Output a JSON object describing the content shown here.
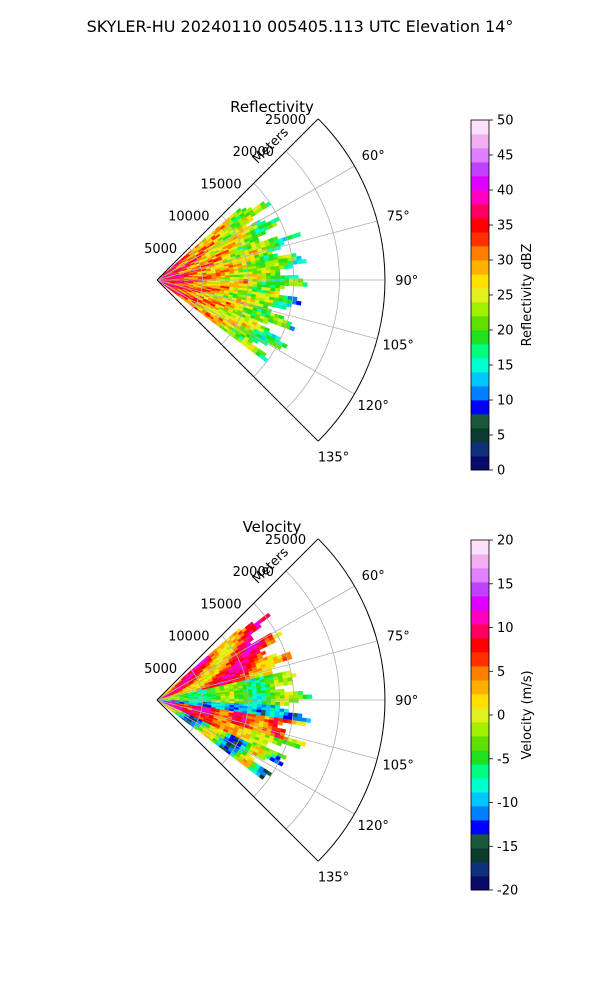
{
  "figure": {
    "suptitle": "SKYLER-HU  20240110  005405.113 UTC Elevation 14°"
  },
  "panels": [
    {
      "title": "Reflectivity",
      "range_unit_label": "Meters",
      "range_ticks": [
        "5000",
        "10000",
        "15000",
        "20000",
        "25000"
      ],
      "azimuth_ticks": [
        "60°",
        "75°",
        "90°",
        "105°",
        "120°",
        "135°"
      ],
      "colorbar": {
        "label": "Reflectivity dBZ",
        "ticks": [
          "0",
          "5",
          "10",
          "15",
          "20",
          "25",
          "30",
          "35",
          "40",
          "45",
          "50"
        ]
      }
    },
    {
      "title": "Velocity",
      "range_unit_label": "Meters",
      "range_ticks": [
        "5000",
        "10000",
        "15000",
        "20000",
        "25000"
      ],
      "azimuth_ticks": [
        "60°",
        "75°",
        "90°",
        "105°",
        "120°",
        "135°"
      ],
      "colorbar": {
        "label": "Velocity (m/s)",
        "ticks": [
          "-20",
          "-15",
          "-10",
          "-5",
          "0",
          "5",
          "10",
          "15",
          "20"
        ]
      }
    }
  ],
  "chart_data": [
    {
      "type": "heatmap",
      "projection": "polar-sector",
      "title": "Reflectivity",
      "azimuth_range_deg": [
        45,
        135
      ],
      "range_limit_m": [
        0,
        25000
      ],
      "range_ticks_m": [
        5000,
        10000,
        15000,
        20000,
        25000
      ],
      "azimuth_ticks_deg": [
        60,
        75,
        90,
        105,
        120,
        135
      ],
      "data_extent_m": 15000,
      "grid": true,
      "colorbar": {
        "label": "Reflectivity dBZ",
        "min": 0,
        "max": 50,
        "ticks": [
          0,
          5,
          10,
          15,
          20,
          25,
          30,
          35,
          40,
          45,
          50
        ]
      },
      "colormap": [
        "#0a0a6b",
        "#10307a",
        "#0a3b2e",
        "#1a5a3a",
        "#0000ff",
        "#0080ff",
        "#00c8ff",
        "#00ffd0",
        "#00ff80",
        "#20e020",
        "#60e000",
        "#a0f000",
        "#e0f020",
        "#ffe000",
        "#ffb000",
        "#ff8000",
        "#ff3000",
        "#ff0000",
        "#ff0060",
        "#ff00c0",
        "#e000ff",
        "#c040ff",
        "#e080ff",
        "#f0b0f0",
        "#fce0fc"
      ]
    },
    {
      "type": "heatmap",
      "projection": "polar-sector",
      "title": "Velocity",
      "azimuth_range_deg": [
        45,
        135
      ],
      "range_limit_m": [
        0,
        25000
      ],
      "range_ticks_m": [
        5000,
        10000,
        15000,
        20000,
        25000
      ],
      "azimuth_ticks_deg": [
        60,
        75,
        90,
        105,
        120,
        135
      ],
      "data_extent_m": 15000,
      "grid": true,
      "colorbar": {
        "label": "Velocity (m/s)",
        "min": -20,
        "max": 20,
        "ticks": [
          -20,
          -15,
          -10,
          -5,
          0,
          5,
          10,
          15,
          20
        ]
      },
      "colormap": [
        "#0a0a6b",
        "#10307a",
        "#0a3b2e",
        "#1a5a3a",
        "#0000ff",
        "#0080ff",
        "#00c8ff",
        "#00ffd0",
        "#00ff80",
        "#20e020",
        "#60e000",
        "#a0f000",
        "#e0f020",
        "#ffe000",
        "#ffb000",
        "#ff8000",
        "#ff3000",
        "#ff0000",
        "#ff0060",
        "#ff00c0",
        "#e000ff",
        "#c040ff",
        "#e080ff",
        "#f0b0f0",
        "#fce0fc"
      ]
    }
  ]
}
